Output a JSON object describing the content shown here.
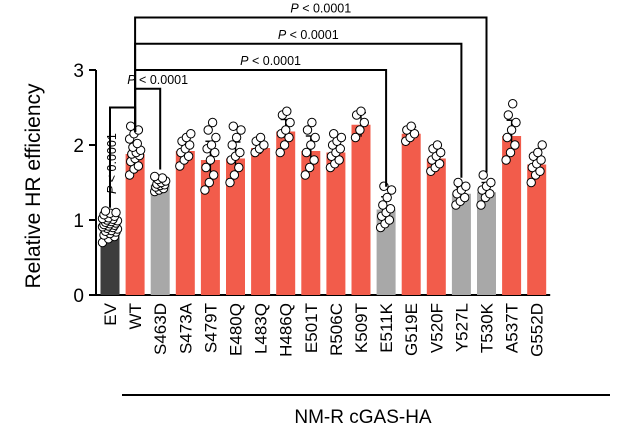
{
  "chart_data": {
    "type": "bar",
    "title": "",
    "xlabel": "",
    "ylabel": "Relative HR efficiency",
    "ylim": [
      0,
      3
    ],
    "yticks": [
      "0",
      "1",
      "2",
      "3"
    ],
    "group_label": "NM-R cGAS-HA",
    "categories": [
      "EV",
      "WT",
      "S463D",
      "S473A",
      "S479T",
      "E480Q",
      "L483Q",
      "H486Q",
      "E501T",
      "R506C",
      "K509T",
      "E511K",
      "G519E",
      "V520F",
      "Y527L",
      "T530K",
      "A537T",
      "G552D"
    ],
    "values": [
      0.93,
      1.88,
      1.47,
      1.92,
      1.8,
      1.82,
      1.96,
      2.18,
      1.92,
      1.9,
      2.27,
      1.14,
      2.15,
      1.82,
      1.35,
      1.37,
      2.12,
      1.74
    ],
    "errors": [
      0.1,
      0.16,
      0.07,
      0.14,
      0.25,
      0.22,
      0.08,
      0.16,
      0.2,
      0.13,
      0.16,
      0.17,
      0.09,
      0.12,
      0.08,
      0.13,
      0.21,
      0.16
    ],
    "bar_colors": [
      "#3d3d3d",
      "#f25c4b",
      "#a8a8a8",
      "#f25c4b",
      "#f25c4b",
      "#f25c4b",
      "#f25c4b",
      "#f25c4b",
      "#f25c4b",
      "#f25c4b",
      "#f25c4b",
      "#a8a8a8",
      "#f25c4b",
      "#f25c4b",
      "#a8a8a8",
      "#a8a8a8",
      "#f25c4b",
      "#f25c4b"
    ],
    "points": [
      [
        0.7,
        0.75,
        0.78,
        0.8,
        0.82,
        0.84,
        0.85,
        0.86,
        0.88,
        0.89,
        0.9,
        0.91,
        0.92,
        0.93,
        0.94,
        0.95,
        0.96,
        0.97,
        0.98,
        0.99,
        1.0,
        1.01,
        1.02,
        1.03,
        1.05,
        1.07,
        1.09,
        1.1,
        1.12
      ],
      [
        1.6,
        1.68,
        1.72,
        1.78,
        1.82,
        1.86,
        1.88,
        1.9,
        1.93,
        1.97,
        2.02,
        2.08,
        2.15,
        2.2,
        2.25
      ],
      [
        1.38,
        1.4,
        1.42,
        1.44,
        1.46,
        1.47,
        1.48,
        1.5,
        1.52,
        1.54,
        1.56,
        1.58
      ],
      [
        1.72,
        1.8,
        1.85,
        1.9,
        1.95,
        2.0,
        2.05,
        2.1,
        2.15
      ],
      [
        1.4,
        1.5,
        1.6,
        1.7,
        1.8,
        1.9,
        1.95,
        2.0,
        2.1,
        2.2,
        2.3
      ],
      [
        1.5,
        1.6,
        1.7,
        1.8,
        1.85,
        1.9,
        2.0,
        2.1,
        2.2,
        2.25
      ],
      [
        1.9,
        1.95,
        2.0,
        2.05,
        2.1
      ],
      [
        1.9,
        2.0,
        2.1,
        2.15,
        2.2,
        2.3,
        2.4,
        2.45
      ],
      [
        1.6,
        1.7,
        1.8,
        1.9,
        2.0,
        2.1,
        2.2,
        2.3
      ],
      [
        1.7,
        1.75,
        1.8,
        1.85,
        1.9,
        1.95,
        2.0,
        2.05,
        2.1,
        2.15
      ],
      [
        2.1,
        2.2,
        2.3,
        2.4,
        2.45
      ],
      [
        0.9,
        0.95,
        1.0,
        1.05,
        1.1,
        1.15,
        1.2,
        1.3,
        1.4,
        1.45
      ],
      [
        2.05,
        2.1,
        2.15,
        2.2,
        2.25
      ],
      [
        1.65,
        1.7,
        1.75,
        1.8,
        1.85,
        1.9,
        1.95,
        2.0
      ],
      [
        1.2,
        1.25,
        1.3,
        1.35,
        1.4,
        1.45,
        1.5
      ],
      [
        1.2,
        1.3,
        1.35,
        1.4,
        1.45,
        1.5,
        1.6
      ],
      [
        1.8,
        1.9,
        2.0,
        2.1,
        2.2,
        2.3,
        2.4,
        2.55
      ],
      [
        1.5,
        1.6,
        1.65,
        1.7,
        1.75,
        1.8,
        1.85,
        1.9,
        2.0
      ]
    ],
    "comparisons": [
      {
        "from": "WT",
        "to": "T530K",
        "label": "P < 0.0001",
        "level": 3.7
      },
      {
        "from": "WT",
        "to": "Y527L",
        "label": "P < 0.0001",
        "level": 3.35
      },
      {
        "from": "WT",
        "to": "E511K",
        "label": "P < 0.0001",
        "level": 3.0
      },
      {
        "from": "WT",
        "to": "S463D",
        "label": "P < 0.0001",
        "level": 2.75
      },
      {
        "from": "EV",
        "to": "WT",
        "label": "P < 0.0001",
        "level": 2.5
      }
    ]
  }
}
